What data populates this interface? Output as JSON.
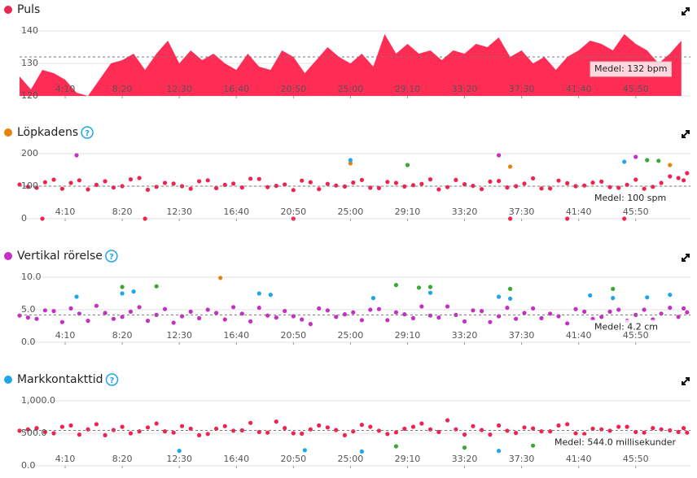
{
  "chart_data": [
    {
      "type": "area",
      "title": "Puls",
      "dot_color": "#e8294f",
      "color": "#ff2d55",
      "xlim": [
        50,
        2990
      ],
      "ylim": [
        120,
        140
      ],
      "yticks": [
        120,
        130,
        140
      ],
      "xticks": [
        {
          "value": 250,
          "label": "4:10"
        },
        {
          "value": 500,
          "label": "8:20"
        },
        {
          "value": 750,
          "label": "12:30"
        },
        {
          "value": 1000,
          "label": "16:40"
        },
        {
          "value": 1250,
          "label": "20:50"
        },
        {
          "value": 1500,
          "label": "25:00"
        },
        {
          "value": 1750,
          "label": "29:10"
        },
        {
          "value": 2000,
          "label": "33:20"
        },
        {
          "value": 2250,
          "label": "37:30"
        },
        {
          "value": 2500,
          "label": "41:40"
        },
        {
          "value": 2750,
          "label": "45:50"
        }
      ],
      "mean": 132,
      "mean_label": "Medel: 132 bpm",
      "x": [
        50,
        100,
        150,
        200,
        250,
        300,
        350,
        400,
        450,
        500,
        550,
        600,
        650,
        700,
        750,
        800,
        850,
        900,
        950,
        1000,
        1050,
        1100,
        1150,
        1200,
        1250,
        1300,
        1350,
        1400,
        1450,
        1500,
        1550,
        1600,
        1650,
        1700,
        1750,
        1800,
        1850,
        1900,
        1950,
        2000,
        2050,
        2100,
        2150,
        2200,
        2250,
        2300,
        2350,
        2400,
        2450,
        2500,
        2550,
        2600,
        2650,
        2700,
        2750,
        2800,
        2850,
        2900,
        2950
      ],
      "values": [
        126,
        122,
        128,
        127,
        125,
        121,
        120,
        125,
        130,
        131,
        133,
        128,
        133,
        137,
        130,
        134,
        131,
        133,
        130,
        128,
        133,
        129,
        128,
        134,
        132,
        127,
        131,
        135,
        132,
        130,
        133,
        129,
        139,
        133,
        136,
        133,
        134,
        131,
        134,
        133,
        136,
        135,
        138,
        132,
        134,
        130,
        132,
        128,
        132,
        134,
        137,
        136,
        134,
        139,
        136,
        134,
        130,
        133,
        137
      ]
    },
    {
      "type": "scatter",
      "title": "Löpkadens",
      "dot_color": "#e8820c",
      "xlim": [
        50,
        2990
      ],
      "ylim": [
        0,
        200
      ],
      "yticks": [
        0,
        100,
        200
      ],
      "xticks": [
        {
          "value": 250,
          "label": "4:10"
        },
        {
          "value": 500,
          "label": "8:20"
        },
        {
          "value": 750,
          "label": "12:30"
        },
        {
          "value": 1000,
          "label": "16:40"
        },
        {
          "value": 1250,
          "label": "20:50"
        },
        {
          "value": 1500,
          "label": "25:00"
        },
        {
          "value": 1750,
          "label": "29:10"
        },
        {
          "value": 2000,
          "label": "33:20"
        },
        {
          "value": 2250,
          "label": "37:30"
        },
        {
          "value": 2500,
          "label": "41:40"
        },
        {
          "value": 2750,
          "label": "45:50"
        }
      ],
      "mean": 100,
      "mean_label": "Medel: 100 spm",
      "series": [
        {
          "color": "#f0224f",
          "x": [
            50,
            125,
            200,
            275,
            350,
            425,
            500,
            575,
            650,
            725,
            800,
            875,
            950,
            1025,
            1100,
            1175,
            1250,
            1325,
            1400,
            1475,
            1550,
            1625,
            1700,
            1775,
            1850,
            1925,
            2000,
            2075,
            2150,
            2225,
            2300,
            2375,
            2450,
            2525,
            2600,
            2675,
            2750,
            2825,
            2900,
            2975
          ],
          "values": [
            105,
            95,
            120,
            110,
            90,
            115,
            100,
            125,
            98,
            108,
            92,
            118,
            104,
            96,
            122,
            101,
            88,
            112,
            107,
            99,
            119,
            94,
            110,
            103,
            121,
            97,
            106,
            91,
            116,
            100,
            124,
            93,
            109,
            102,
            114,
            95,
            120,
            98,
            130,
            140
          ]
        },
        {
          "color": "#f0224f",
          "x": [
            87,
            162,
            237,
            312,
            387,
            462,
            537,
            612,
            687,
            762,
            837,
            912,
            987,
            1062,
            1137,
            1212,
            1287,
            1362,
            1437,
            1512,
            1587,
            1662,
            1737,
            1812,
            1887,
            1962,
            2037,
            2112,
            2187,
            2262,
            2337,
            2412,
            2487,
            2562,
            2637,
            2712,
            2787,
            2862,
            2937,
            2960
          ],
          "values": [
            98,
            112,
            92,
            118,
            104,
            96,
            121,
            89,
            110,
            100,
            115,
            94,
            108,
            123,
            97,
            105,
            117,
            91,
            102,
            111,
            95,
            113,
            99,
            107,
            90,
            119,
            101,
            114,
            96,
            108,
            93,
            117,
            100,
            111,
            97,
            104,
            92,
            110,
            125,
            118
          ]
        },
        {
          "color": "#f0224f",
          "x": [
            150,
            600,
            1250,
            2200,
            2450,
            2700
          ],
          "values": [
            0,
            0,
            0,
            0,
            0,
            0
          ]
        },
        {
          "color": "#e8820c",
          "x": [
            1500,
            2200,
            2900
          ],
          "values": [
            170,
            160,
            165
          ]
        },
        {
          "color": "#3aa832",
          "x": [
            1750,
            2800,
            2850
          ],
          "values": [
            165,
            180,
            178
          ]
        },
        {
          "color": "#c42fc4",
          "x": [
            300,
            2150,
            2750
          ],
          "values": [
            195,
            195,
            190
          ]
        },
        {
          "color": "#1ea7e8",
          "x": [
            1500,
            2700
          ],
          "values": [
            180,
            175
          ]
        }
      ]
    },
    {
      "type": "scatter",
      "title": "Vertikal rörelse",
      "dot_color": "#c42fc4",
      "xlim": [
        50,
        2990
      ],
      "ylim": [
        0,
        10
      ],
      "yticks": [
        {
          "value": 0,
          "label": "0.0"
        },
        {
          "value": 5,
          "label": "5.0"
        },
        {
          "value": 10,
          "label": "10.0"
        }
      ],
      "xticks": [
        {
          "value": 250,
          "label": "4:10"
        },
        {
          "value": 500,
          "label": "8:20"
        },
        {
          "value": 750,
          "label": "12:30"
        },
        {
          "value": 1000,
          "label": "16:40"
        },
        {
          "value": 1250,
          "label": "20:50"
        },
        {
          "value": 1500,
          "label": "25:00"
        },
        {
          "value": 1750,
          "label": "29:10"
        },
        {
          "value": 2000,
          "label": "33:20"
        },
        {
          "value": 2250,
          "label": "37:30"
        },
        {
          "value": 2500,
          "label": "41:40"
        },
        {
          "value": 2750,
          "label": "45:50"
        }
      ],
      "mean": 4.2,
      "mean_label": "Medel: 4.2 cm",
      "series": [
        {
          "color": "#c42fc4",
          "x": [
            50,
            125,
            200,
            275,
            350,
            425,
            500,
            575,
            650,
            725,
            800,
            875,
            950,
            1025,
            1100,
            1175,
            1250,
            1325,
            1400,
            1475,
            1550,
            1625,
            1700,
            1775,
            1850,
            1925,
            2000,
            2075,
            2150,
            2225,
            2300,
            2375,
            2450,
            2525,
            2600,
            2675,
            2750,
            2825,
            2900,
            2975
          ],
          "values": [
            4.1,
            3.6,
            4.8,
            5.2,
            3.3,
            4.5,
            3.9,
            5.4,
            4.2,
            3.0,
            4.7,
            5.0,
            3.5,
            4.4,
            5.3,
            3.8,
            4.0,
            2.8,
            4.9,
            4.3,
            3.4,
            5.1,
            4.6,
            3.7,
            4.1,
            5.5,
            3.2,
            4.8,
            4.0,
            3.6,
            5.2,
            4.4,
            2.9,
            4.7,
            3.9,
            5.0,
            4.2,
            3.5,
            5.3,
            4.6
          ]
        },
        {
          "color": "#c42fc4",
          "x": [
            87,
            162,
            237,
            312,
            387,
            462,
            537,
            612,
            687,
            762,
            837,
            912,
            987,
            1062,
            1137,
            1212,
            1287,
            1362,
            1437,
            1512,
            1587,
            1662,
            1737,
            1812,
            1887,
            1962,
            2037,
            2112,
            2187,
            2262,
            2337,
            2412,
            2487,
            2562,
            2637,
            2712,
            2787,
            2862,
            2937,
            2960
          ],
          "values": [
            3.8,
            4.9,
            3.1,
            4.4,
            5.6,
            3.6,
            4.7,
            3.3,
            5.1,
            4.0,
            3.7,
            4.5,
            5.4,
            3.2,
            4.1,
            4.8,
            3.5,
            5.2,
            3.9,
            4.6,
            5.0,
            3.4,
            4.3,
            5.5,
            3.8,
            4.2,
            4.9,
            3.1,
            5.3,
            4.5,
            3.7,
            4.0,
            5.1,
            3.6,
            4.7,
            3.3,
            5.0,
            4.4,
            3.9,
            5.2
          ]
        },
        {
          "color": "#1ea7e8",
          "x": [
            300,
            500,
            550,
            1100,
            1150,
            1600,
            1850,
            2150,
            2200,
            2550,
            2650,
            2800,
            2900
          ],
          "values": [
            7.0,
            7.5,
            7.8,
            7.5,
            7.3,
            6.8,
            7.6,
            7.0,
            6.7,
            7.2,
            6.8,
            6.9,
            7.3
          ]
        },
        {
          "color": "#3aa832",
          "x": [
            500,
            650,
            1700,
            1800,
            1850,
            2200,
            2650
          ],
          "values": [
            8.5,
            8.6,
            8.8,
            8.4,
            8.5,
            8.2,
            8.2
          ]
        },
        {
          "color": "#e8820c",
          "x": [
            930
          ],
          "values": [
            9.9
          ]
        }
      ]
    },
    {
      "type": "scatter",
      "title": "Markkontakttid",
      "dot_color": "#1ea7e8",
      "xlim": [
        50,
        2990
      ],
      "ylim": [
        0,
        1000
      ],
      "yticks": [
        {
          "value": 0,
          "label": "0.0"
        },
        {
          "value": 500,
          "label": "500.0"
        },
        {
          "value": 1000,
          "label": "1,000.0"
        }
      ],
      "xticks": [
        {
          "value": 250,
          "label": "4:10"
        },
        {
          "value": 500,
          "label": "8:20"
        },
        {
          "value": 750,
          "label": "12:30"
        },
        {
          "value": 1000,
          "label": "16:40"
        },
        {
          "value": 1250,
          "label": "20:50"
        },
        {
          "value": 1500,
          "label": "25:00"
        },
        {
          "value": 1750,
          "label": "29:10"
        },
        {
          "value": 2000,
          "label": "33:20"
        },
        {
          "value": 2250,
          "label": "37:30"
        },
        {
          "value": 2500,
          "label": "41:40"
        },
        {
          "value": 2750,
          "label": "45:50"
        }
      ],
      "mean": 544.0,
      "mean_label": "Medel: 544.0 millisekunder",
      "series": [
        {
          "color": "#f0224f",
          "x": [
            50,
            125,
            200,
            275,
            350,
            425,
            500,
            575,
            650,
            725,
            800,
            875,
            950,
            1025,
            1100,
            1175,
            1250,
            1325,
            1400,
            1475,
            1550,
            1625,
            1700,
            1775,
            1850,
            1925,
            2000,
            2075,
            2150,
            2225,
            2300,
            2375,
            2450,
            2525,
            2600,
            2675,
            2750,
            2825,
            2900,
            2975
          ],
          "values": [
            540,
            580,
            500,
            620,
            560,
            470,
            600,
            530,
            650,
            510,
            570,
            490,
            610,
            545,
            520,
            680,
            500,
            560,
            590,
            470,
            630,
            540,
            515,
            600,
            560,
            700,
            480,
            550,
            620,
            505,
            575,
            530,
            640,
            490,
            560,
            600,
            520,
            580,
            545,
            510
          ]
        },
        {
          "color": "#f0224f",
          "x": [
            87,
            162,
            237,
            312,
            387,
            462,
            537,
            612,
            687,
            762,
            837,
            912,
            987,
            1062,
            1137,
            1212,
            1287,
            1362,
            1437,
            1512,
            1587,
            1662,
            1737,
            1812,
            1887,
            1962,
            2037,
            2112,
            2187,
            2262,
            2337,
            2412,
            2487,
            2562,
            2637,
            2712,
            2787,
            2862,
            2937,
            2960
          ],
          "values": [
            560,
            520,
            600,
            480,
            640,
            550,
            500,
            590,
            530,
            610,
            470,
            570,
            540,
            660,
            510,
            580,
            495,
            620,
            550,
            530,
            600,
            490,
            570,
            650,
            520,
            560,
            610,
            480,
            540,
            590,
            530,
            620,
            500,
            570,
            540,
            600,
            510,
            560,
            520,
            580
          ]
        },
        {
          "color": "#1ea7e8",
          "x": [
            750,
            1300,
            1550,
            2150
          ],
          "values": [
            230,
            240,
            220,
            230
          ]
        },
        {
          "color": "#3aa832",
          "x": [
            1700,
            2000,
            2300
          ],
          "values": [
            300,
            280,
            310
          ]
        }
      ]
    }
  ]
}
